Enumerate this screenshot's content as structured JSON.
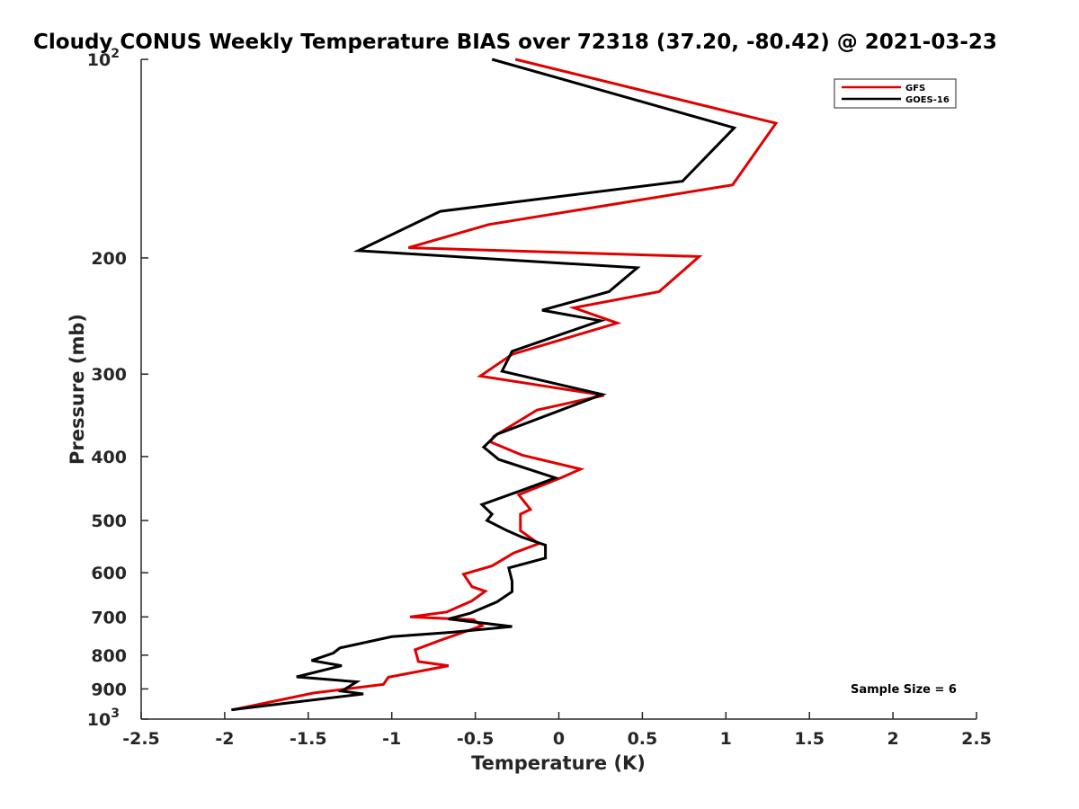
{
  "chart_data": {
    "type": "line",
    "title": "Cloudy CONUS Weekly Temperature BIAS over 72318 (37.20, -80.42) @ 2021-03-23",
    "xlabel": "Temperature (K)",
    "ylabel": "Pressure (mb)",
    "xlim": [
      -2.5,
      2.5
    ],
    "ylim": [
      100,
      1000
    ],
    "yscale": "log",
    "y_reversed": true,
    "grid": false,
    "legend_position": "top-right",
    "x_ticks": [
      -2.5,
      -2,
      -1.5,
      -1,
      -0.5,
      0,
      0.5,
      1,
      1.5,
      2,
      2.5
    ],
    "x_tick_labels": [
      "-2.5",
      "-2",
      "-1.5",
      "-1",
      "-0.5",
      "0",
      "0.5",
      "1",
      "1.5",
      "2",
      "2.5"
    ],
    "y_ticks": [
      {
        "value": 100,
        "label": "10",
        "sup": "2"
      },
      {
        "value": 200,
        "label": "200"
      },
      {
        "value": 300,
        "label": "300"
      },
      {
        "value": 400,
        "label": "400"
      },
      {
        "value": 500,
        "label": "500"
      },
      {
        "value": 600,
        "label": "600"
      },
      {
        "value": 700,
        "label": "700"
      },
      {
        "value": 800,
        "label": "800"
      },
      {
        "value": 900,
        "label": "900"
      },
      {
        "value": 1000,
        "label": "10",
        "sup": "3"
      }
    ],
    "annotation": "Sample Size = 6",
    "series": [
      {
        "name": "GFS",
        "color": "#e00000",
        "points": [
          [
            -0.26,
            100
          ],
          [
            1.3,
            125
          ],
          [
            1.04,
            155
          ],
          [
            -0.42,
            178
          ],
          [
            -0.9,
            193
          ],
          [
            0.84,
            199
          ],
          [
            0.6,
            225
          ],
          [
            0.09,
            238
          ],
          [
            0.35,
            251
          ],
          [
            -0.28,
            280
          ],
          [
            -0.47,
            302
          ],
          [
            0.27,
            323
          ],
          [
            -0.13,
            340
          ],
          [
            -0.39,
            373
          ],
          [
            -0.41,
            380
          ],
          [
            -0.22,
            398
          ],
          [
            0.13,
            418
          ],
          [
            0.02,
            430
          ],
          [
            -0.24,
            457
          ],
          [
            -0.17,
            481
          ],
          [
            -0.23,
            489
          ],
          [
            -0.23,
            518
          ],
          [
            -0.12,
            542
          ],
          [
            -0.27,
            560
          ],
          [
            -0.4,
            586
          ],
          [
            -0.57,
            603
          ],
          [
            -0.52,
            630
          ],
          [
            -0.44,
            640
          ],
          [
            -0.52,
            662
          ],
          [
            -0.67,
            688
          ],
          [
            -0.89,
            700
          ],
          [
            -0.51,
            707
          ],
          [
            -0.46,
            722
          ],
          [
            -0.7,
            758
          ],
          [
            -0.86,
            785
          ],
          [
            -0.84,
            818
          ],
          [
            -0.66,
            830
          ],
          [
            -1.02,
            864
          ],
          [
            -1.05,
            886
          ],
          [
            -1.47,
            913
          ],
          [
            -1.95,
            968
          ]
        ]
      },
      {
        "name": "GOES-16",
        "color": "#000000",
        "points": [
          [
            -0.4,
            100
          ],
          [
            1.05,
            127
          ],
          [
            0.74,
            153
          ],
          [
            -0.71,
            170
          ],
          [
            -1.2,
            195
          ],
          [
            0.47,
            207
          ],
          [
            0.3,
            225
          ],
          [
            -0.1,
            240
          ],
          [
            0.25,
            249
          ],
          [
            -0.28,
            277
          ],
          [
            -0.34,
            297
          ],
          [
            0.26,
            322
          ],
          [
            -0.37,
            370
          ],
          [
            -0.45,
            387
          ],
          [
            -0.36,
            404
          ],
          [
            -0.02,
            431
          ],
          [
            -0.19,
            447
          ],
          [
            -0.46,
            473
          ],
          [
            -0.4,
            489
          ],
          [
            -0.43,
            500
          ],
          [
            -0.31,
            518
          ],
          [
            -0.22,
            530
          ],
          [
            -0.08,
            545
          ],
          [
            -0.08,
            570
          ],
          [
            -0.3,
            590
          ],
          [
            -0.28,
            618
          ],
          [
            -0.28,
            641
          ],
          [
            -0.37,
            664
          ],
          [
            -0.53,
            691
          ],
          [
            -0.66,
            705
          ],
          [
            -0.28,
            724
          ],
          [
            -0.63,
            738
          ],
          [
            -1.0,
            750
          ],
          [
            -1.31,
            780
          ],
          [
            -1.35,
            794
          ],
          [
            -1.48,
            815
          ],
          [
            -1.3,
            830
          ],
          [
            -1.57,
            863
          ],
          [
            -1.21,
            878
          ],
          [
            -1.3,
            907
          ],
          [
            -1.17,
            916
          ],
          [
            -1.96,
            968
          ]
        ]
      }
    ]
  }
}
